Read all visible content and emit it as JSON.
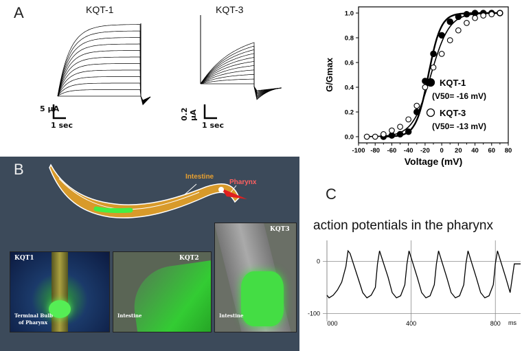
{
  "panel_a": {
    "letter": "A",
    "kqt1": {
      "title": "KQT-1",
      "scale_current": "5 µA",
      "scale_time": "1 sec"
    },
    "kqt3": {
      "title": "KQT-3",
      "scale_current": "0.2 µA",
      "scale_time": "1 sec"
    }
  },
  "panel_b": {
    "letter": "B",
    "worm_labels": {
      "intestine": "Intestine",
      "pharynx": "Pharynx"
    },
    "micrographs": [
      {
        "title": "KQT1",
        "caption_line1": "Terminal Bulb",
        "caption_line2": "of Pharynx"
      },
      {
        "title": "KQT2",
        "caption_line1": "Intestine"
      },
      {
        "title": "KQT3",
        "caption_line1": "Intestine"
      }
    ]
  },
  "panel_c": {
    "letter": "C",
    "title": "action potentials in the pharynx",
    "unit_label": "ms"
  },
  "colors": {
    "intestine_label": "#e8a030",
    "pharynx_label": "#ff6060",
    "gfp": "#33dd33",
    "worm_body": "#d89a2a",
    "panel_b_bg": "#3c4a5a"
  },
  "chart_data": [
    {
      "type": "scatter",
      "xlabel": "Voltage (mV)",
      "ylabel": "G/Gmax",
      "xlim": [
        -100,
        80
      ],
      "ylim": [
        -0.05,
        1.05
      ],
      "x_ticks": [
        -100,
        -90,
        -80,
        -70,
        -60,
        -50,
        -40,
        -30,
        -20,
        -10,
        0,
        10,
        20,
        30,
        40,
        50,
        60,
        70,
        80
      ],
      "x_tick_labels": [
        "-100",
        "",
        "-80",
        "",
        "-60",
        "",
        "-40",
        "",
        "-20",
        "",
        "0",
        "",
        "20",
        "",
        "40",
        "",
        "60",
        "",
        "80"
      ],
      "y_ticks": [
        0.0,
        0.2,
        0.4,
        0.6,
        0.8,
        1.0
      ],
      "y_tick_labels": [
        "0.0",
        "0.2",
        "0.4",
        "0.6",
        "0.8",
        "1.0"
      ],
      "series": [
        {
          "name": "KQT-1",
          "sublabel": "(V50= -16 mV)",
          "marker": "filled-circle",
          "v50": -16,
          "slope": 7.5,
          "x": [
            -70,
            -60,
            -50,
            -40,
            -30,
            -20,
            -10,
            0,
            10,
            20,
            30,
            40,
            50,
            60,
            70
          ],
          "y": [
            0.0,
            0.01,
            0.02,
            0.04,
            0.2,
            0.45,
            0.67,
            0.82,
            0.93,
            0.97,
            0.99,
            1.0,
            1.0,
            1.0,
            1.0
          ]
        },
        {
          "name": "KQT-3",
          "sublabel": "(V50= -13 mV)",
          "marker": "open-circle",
          "v50": -13,
          "slope": 11,
          "x": [
            -90,
            -80,
            -70,
            -60,
            -50,
            -40,
            -30,
            -20,
            -10,
            0,
            10,
            20,
            30,
            40,
            50,
            60,
            70
          ],
          "y": [
            0.0,
            0.0,
            0.02,
            0.05,
            0.08,
            0.14,
            0.25,
            0.4,
            0.56,
            0.67,
            0.78,
            0.86,
            0.92,
            0.96,
            0.98,
            0.99,
            1.0
          ]
        }
      ]
    },
    {
      "type": "line",
      "title": "action potentials in the pharynx",
      "xlim": [
        0,
        920
      ],
      "ylim": [
        -110,
        40
      ],
      "x_ticks": [
        0,
        400,
        800
      ],
      "x_tick_labels": [
        "000",
        "400",
        "800"
      ],
      "y_ticks": [
        0,
        -100
      ],
      "y_tick_labels": [
        "0",
        "-100"
      ],
      "series": [
        {
          "name": "",
          "x": [
            0,
            10,
            30,
            50,
            70,
            90,
            100,
            110,
            150,
            170,
            190,
            210,
            230,
            240,
            250,
            290,
            310,
            330,
            350,
            370,
            380,
            390,
            430,
            450,
            470,
            490,
            510,
            520,
            530,
            570,
            590,
            610,
            630,
            650,
            660,
            670,
            710,
            730,
            750,
            770,
            790,
            800,
            810,
            850,
            870,
            890,
            910,
            920
          ],
          "y": [
            -65,
            -70,
            -65,
            -55,
            -40,
            -10,
            20,
            15,
            -35,
            -60,
            -70,
            -65,
            -50,
            -5,
            20,
            -30,
            -60,
            -70,
            -66,
            -45,
            -5,
            20,
            -32,
            -60,
            -70,
            -66,
            -45,
            -5,
            20,
            -32,
            -60,
            -70,
            -66,
            -45,
            -5,
            20,
            -32,
            -60,
            -70,
            -66,
            -45,
            -5,
            20,
            -32,
            -60,
            -5,
            -5,
            -5
          ]
        }
      ]
    }
  ]
}
